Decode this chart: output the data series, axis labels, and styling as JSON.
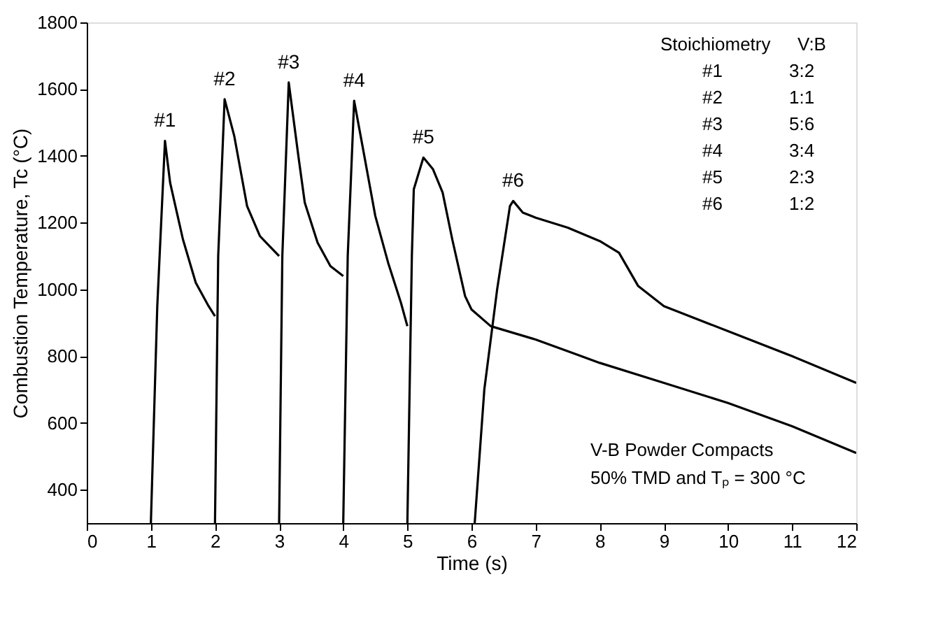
{
  "chart_data": {
    "type": "line",
    "xlabel": "Time (s)",
    "ylabel": "Combustion Temperature, Tc (°C)",
    "xlim": [
      0,
      12
    ],
    "xticks": [
      0,
      1,
      2,
      3,
      4,
      5,
      6,
      7,
      8,
      9,
      10,
      11,
      12
    ],
    "ylim": [
      300,
      1800
    ],
    "yticks": [
      400,
      600,
      800,
      1000,
      1200,
      1400,
      1600,
      1800
    ],
    "grid": false,
    "legend": false,
    "line_style": "solid",
    "marker": "none",
    "series": [
      {
        "color": "#000000",
        "x": [
          1.0,
          1.1,
          1.22,
          1.3,
          1.5,
          1.7,
          1.9,
          2.0
        ],
        "values": [
          300,
          950,
          1445,
          1320,
          1150,
          1020,
          950,
          920
        ]
      },
      {
        "color": "#000000",
        "x": [
          2.0,
          2.05,
          2.15,
          2.3,
          2.5,
          2.7,
          2.8,
          3.0
        ],
        "values": [
          300,
          1100,
          1570,
          1460,
          1250,
          1160,
          1140,
          1100
        ]
      },
      {
        "color": "#000000",
        "x": [
          3.0,
          3.05,
          3.15,
          3.3,
          3.4,
          3.6,
          3.8,
          4.0
        ],
        "values": [
          300,
          1100,
          1620,
          1400,
          1260,
          1140,
          1070,
          1040
        ]
      },
      {
        "color": "#000000",
        "x": [
          4.0,
          4.07,
          4.17,
          4.3,
          4.5,
          4.7,
          4.9,
          5.0
        ],
        "values": [
          300,
          1100,
          1565,
          1430,
          1220,
          1080,
          960,
          890
        ]
      },
      {
        "color": "#000000",
        "x": [
          5.0,
          5.07,
          5.1,
          5.25,
          5.4,
          5.55,
          5.7,
          5.9,
          6.0,
          6.3,
          7,
          8,
          9,
          10,
          11,
          12
        ],
        "values": [
          300,
          1100,
          1300,
          1395,
          1360,
          1290,
          1150,
          980,
          940,
          890,
          850,
          780,
          720,
          660,
          590,
          510
        ]
      },
      {
        "color": "#000000",
        "x": [
          6.05,
          6.2,
          6.4,
          6.6,
          6.65,
          6.8,
          7.0,
          7.5,
          8.0,
          8.3,
          8.6,
          9.0,
          10,
          11,
          12
        ],
        "values": [
          300,
          700,
          1000,
          1250,
          1265,
          1230,
          1215,
          1185,
          1145,
          1110,
          1010,
          950,
          875,
          800,
          720
        ]
      }
    ],
    "annotations": [
      {
        "text": "#1",
        "x": 1.22,
        "y": 1445
      },
      {
        "text": "#2",
        "x": 2.15,
        "y": 1570
      },
      {
        "text": "#3",
        "x": 3.15,
        "y": 1620
      },
      {
        "text": "#4",
        "x": 4.17,
        "y": 1565
      },
      {
        "text": "#5",
        "x": 5.25,
        "y": 1395
      },
      {
        "text": "#6",
        "x": 6.65,
        "y": 1265
      },
      "Stoichiometry  V:B",
      "#1        3:2",
      "#2        1:1",
      "#3        5:6",
      "#4        3:4",
      "#5        2:3",
      "#6        1:2",
      "V-B Powder Compacts",
      "50% TMD and Tₚ = 300 °C"
    ]
  }
}
